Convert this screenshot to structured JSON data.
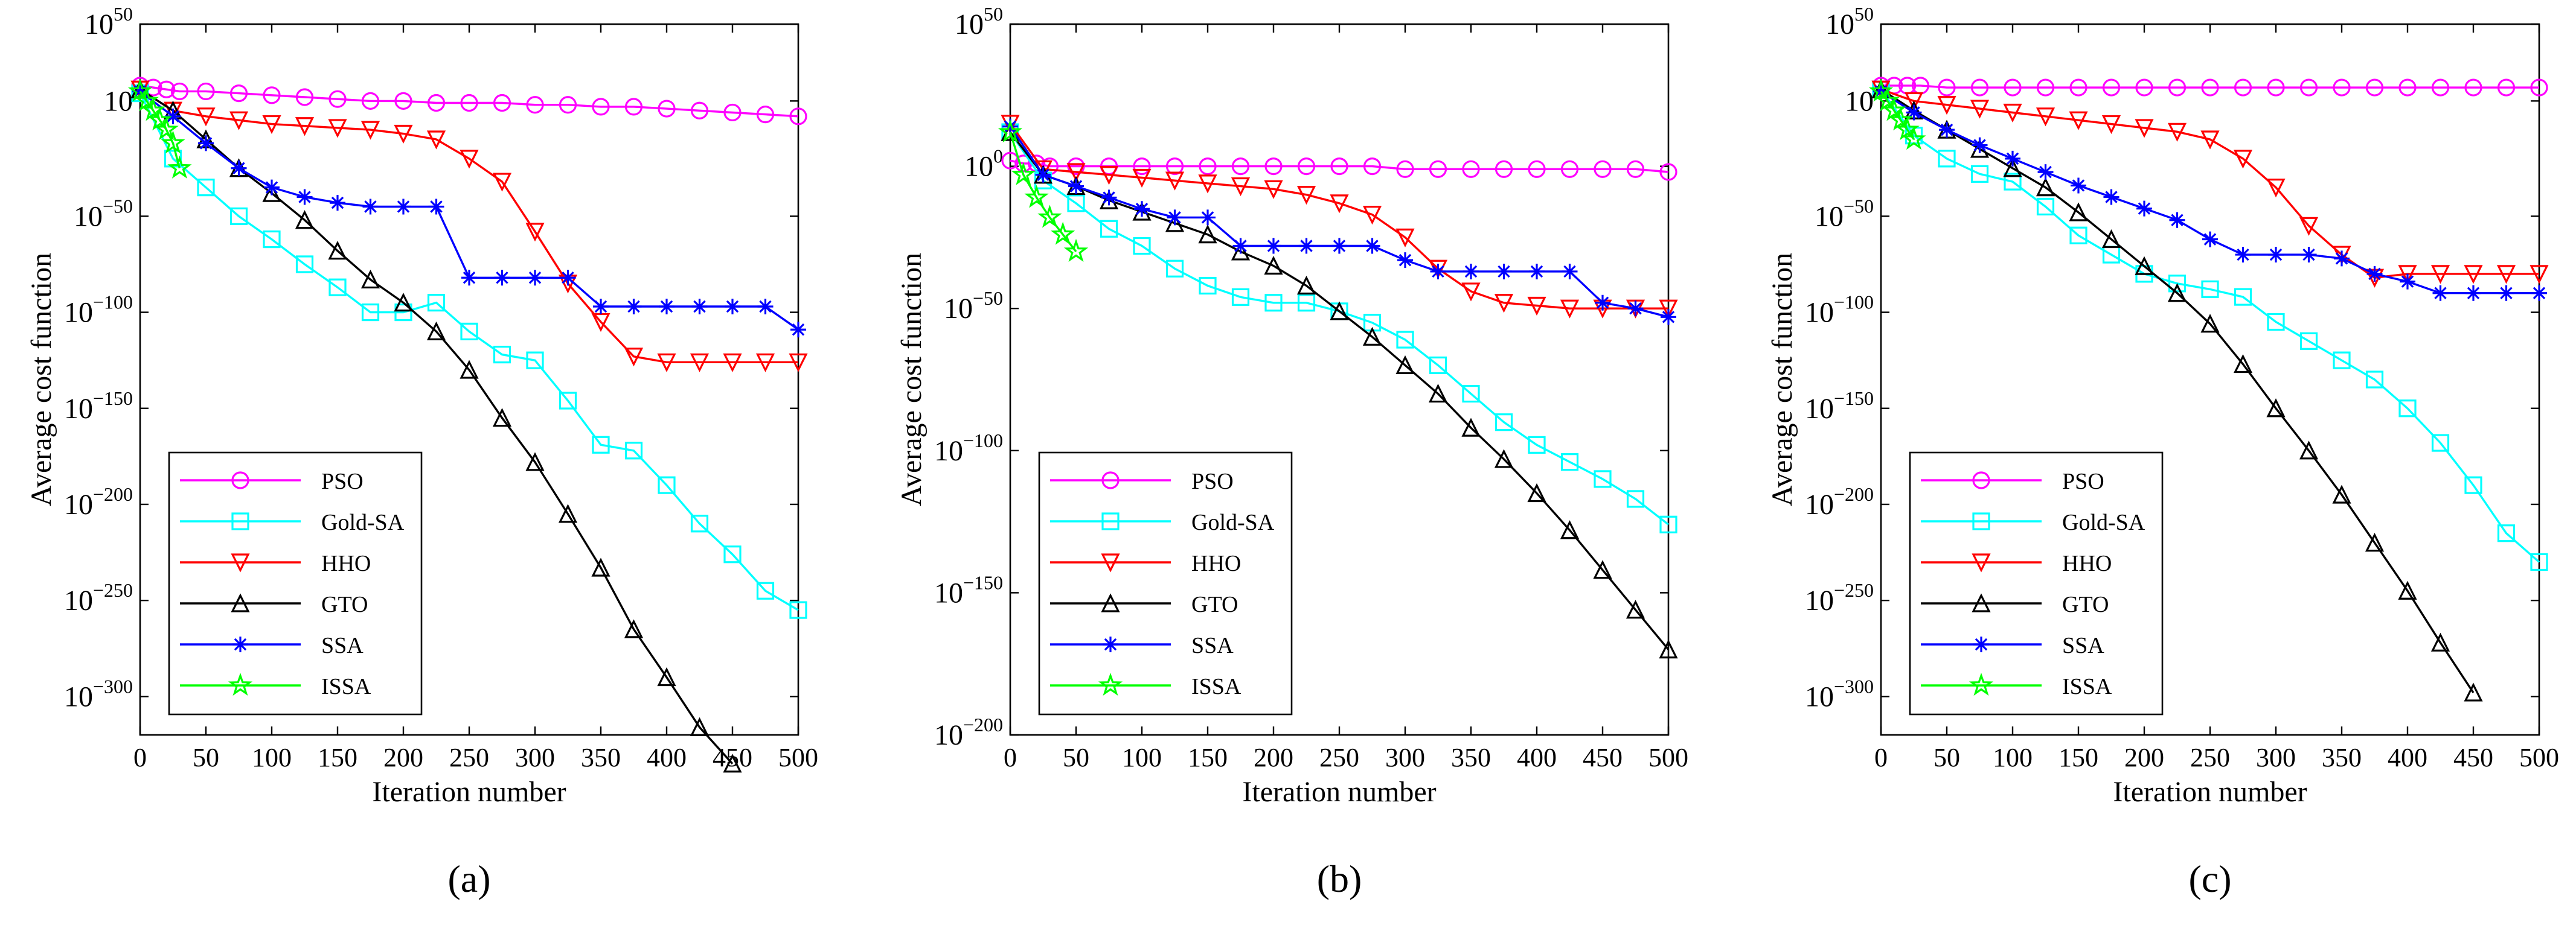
{
  "figure": {
    "panel_labels": [
      "(a)",
      "(b)",
      "(c)"
    ],
    "legend": [
      {
        "name": "PSO",
        "color": "#ff00ff",
        "marker": "circle"
      },
      {
        "name": "Gold-SA",
        "color": "#00ffff",
        "marker": "square"
      },
      {
        "name": "HHO",
        "color": "#ff0000",
        "marker": "triangle-down"
      },
      {
        "name": "GTO",
        "color": "#000000",
        "marker": "triangle-up"
      },
      {
        "name": "SSA",
        "color": "#0000ff",
        "marker": "asterisk"
      },
      {
        "name": "ISSA",
        "color": "#00ff00",
        "marker": "star"
      }
    ]
  },
  "chart_data": [
    {
      "type": "line",
      "panel": "(a)",
      "xlabel": "Iteration number",
      "ylabel": "Average cost function",
      "y_scale": "log10",
      "xlim": [
        0,
        500
      ],
      "ylim": [
        -320,
        50
      ],
      "x_ticks": [
        0,
        50,
        100,
        150,
        200,
        250,
        300,
        350,
        400,
        450,
        500
      ],
      "y_ticks": [
        {
          "exp": 50,
          "label_base": "10",
          "label_exp": "50"
        },
        {
          "exp": 10,
          "label_base": "10",
          "label_exp": ""
        },
        {
          "exp": -50,
          "label_base": "10",
          "label_exp": "−50"
        },
        {
          "exp": -100,
          "label_base": "10",
          "label_exp": "−100"
        },
        {
          "exp": -150,
          "label_base": "10",
          "label_exp": "−150"
        },
        {
          "exp": -200,
          "label_base": "10",
          "label_exp": "−200"
        },
        {
          "exp": -250,
          "label_base": "10",
          "label_exp": "−250"
        },
        {
          "exp": -300,
          "label_base": "10",
          "label_exp": "−300"
        }
      ],
      "series": [
        {
          "name": "PSO",
          "x": [
            0,
            10,
            20,
            30,
            50,
            75,
            100,
            125,
            150,
            175,
            200,
            225,
            250,
            275,
            300,
            325,
            350,
            375,
            400,
            425,
            450,
            475,
            500
          ],
          "log10_y": [
            18,
            17,
            16,
            15,
            15,
            14,
            13,
            12,
            11,
            10,
            10,
            9,
            9,
            9,
            8,
            8,
            7,
            7,
            6,
            5,
            4,
            3,
            2
          ]
        },
        {
          "name": "Gold-SA",
          "x": [
            0,
            25,
            50,
            75,
            100,
            125,
            150,
            175,
            200,
            225,
            250,
            275,
            300,
            325,
            350,
            375,
            400,
            425,
            450,
            475,
            500
          ],
          "log10_y": [
            14,
            -20,
            -35,
            -50,
            -62,
            -75,
            -87,
            -100,
            -100,
            -95,
            -110,
            -122,
            -125,
            -146,
            -169,
            -172,
            -190,
            -210,
            -226,
            -245,
            -255
          ]
        },
        {
          "name": "HHO",
          "x": [
            0,
            25,
            50,
            75,
            100,
            125,
            150,
            175,
            200,
            225,
            250,
            275,
            300,
            325,
            350,
            375,
            400,
            425,
            450,
            475,
            500
          ],
          "log10_y": [
            16,
            5,
            2,
            0,
            -2,
            -3,
            -4,
            -5,
            -7,
            -10,
            -20,
            -32,
            -58,
            -85,
            -105,
            -123,
            -126,
            -126,
            -126,
            -126,
            -126
          ]
        },
        {
          "name": "GTO",
          "x": [
            0,
            25,
            50,
            75,
            100,
            125,
            150,
            175,
            200,
            225,
            250,
            275,
            300,
            325,
            350,
            375,
            400,
            425,
            450
          ],
          "log10_y": [
            16,
            5,
            -10,
            -25,
            -38,
            -52,
            -68,
            -83,
            -95,
            -110,
            -130,
            -155,
            -178,
            -205,
            -233,
            -265,
            -290,
            -316,
            -335
          ]
        },
        {
          "name": "SSA",
          "x": [
            0,
            25,
            50,
            75,
            100,
            125,
            150,
            175,
            200,
            225,
            250,
            275,
            300,
            325,
            350,
            375,
            400,
            425,
            450,
            475,
            500
          ],
          "log10_y": [
            15,
            2,
            -12,
            -25,
            -35,
            -40,
            -43,
            -45,
            -45,
            -45,
            -82,
            -82,
            -82,
            -82,
            -97,
            -97,
            -97,
            -97,
            -97,
            -97,
            -109
          ]
        },
        {
          "name": "ISSA",
          "x": [
            0,
            5,
            10,
            15,
            20,
            25,
            30
          ],
          "log10_y": [
            15,
            10,
            5,
            0,
            -5,
            -12,
            -25
          ]
        }
      ]
    },
    {
      "type": "line",
      "panel": "(b)",
      "xlabel": "Iteration number",
      "ylabel": "Average cost function",
      "y_scale": "log10",
      "xlim": [
        0,
        500
      ],
      "ylim": [
        -200,
        50
      ],
      "x_ticks": [
        0,
        50,
        100,
        150,
        200,
        250,
        300,
        350,
        400,
        450,
        500
      ],
      "y_ticks": [
        {
          "exp": 50,
          "label_base": "10",
          "label_exp": "50"
        },
        {
          "exp": 0,
          "label_base": "10",
          "label_exp": "0"
        },
        {
          "exp": -50,
          "label_base": "10",
          "label_exp": "−50"
        },
        {
          "exp": -100,
          "label_base": "10",
          "label_exp": "−100"
        },
        {
          "exp": -150,
          "label_base": "10",
          "label_exp": "−150"
        },
        {
          "exp": -200,
          "label_base": "10",
          "label_exp": "−200"
        }
      ],
      "series": [
        {
          "name": "PSO",
          "x": [
            0,
            10,
            20,
            30,
            50,
            75,
            100,
            125,
            150,
            175,
            200,
            225,
            250,
            275,
            300,
            325,
            350,
            375,
            400,
            425,
            450,
            475,
            500
          ],
          "log10_y": [
            2,
            1,
            1,
            0,
            0,
            0,
            0,
            0,
            0,
            0,
            0,
            0,
            0,
            0,
            -1,
            -1,
            -1,
            -1,
            -1,
            -1,
            -1,
            -1,
            -2
          ]
        },
        {
          "name": "Gold-SA",
          "x": [
            0,
            25,
            50,
            75,
            100,
            125,
            150,
            175,
            200,
            225,
            250,
            275,
            300,
            325,
            350,
            375,
            400,
            425,
            450,
            475,
            500
          ],
          "log10_y": [
            12,
            -5,
            -13,
            -22,
            -28,
            -36,
            -42,
            -46,
            -48,
            -48,
            -51,
            -55,
            -61,
            -70,
            -80,
            -90,
            -98,
            -104,
            -110,
            -117,
            -126
          ]
        },
        {
          "name": "HHO",
          "x": [
            0,
            25,
            50,
            75,
            100,
            125,
            150,
            175,
            200,
            225,
            250,
            275,
            300,
            325,
            350,
            375,
            400,
            425,
            450,
            475,
            500
          ],
          "log10_y": [
            15,
            -1,
            -2,
            -3,
            -4,
            -5,
            -6,
            -7,
            -8,
            -10,
            -13,
            -17,
            -25,
            -36,
            -44,
            -48,
            -49,
            -50,
            -50,
            -50,
            -50
          ]
        },
        {
          "name": "SSA",
          "x": [
            0,
            25,
            50,
            75,
            100,
            125,
            150,
            175,
            200,
            225,
            250,
            275,
            300,
            325,
            350,
            375,
            400,
            425,
            450,
            475,
            500
          ],
          "log10_y": [
            14,
            -3,
            -7,
            -11,
            -15,
            -18,
            -18,
            -28,
            -28,
            -28,
            -28,
            -28,
            -33,
            -37,
            -37,
            -37,
            -37,
            -37,
            -48,
            -50,
            -53
          ]
        },
        {
          "name": "GTO",
          "x": [
            0,
            25,
            50,
            75,
            100,
            125,
            150,
            175,
            200,
            225,
            250,
            275,
            300,
            325,
            350,
            375,
            400,
            425,
            450,
            475,
            500
          ],
          "log10_y": [
            12,
            -3,
            -7,
            -12,
            -16,
            -20,
            -24,
            -30,
            -35,
            -42,
            -51,
            -60,
            -70,
            -80,
            -92,
            -103,
            -115,
            -128,
            -142,
            -156,
            -170
          ]
        },
        {
          "name": "ISSA",
          "x": [
            0,
            10,
            20,
            30,
            40,
            50
          ],
          "log10_y": [
            12,
            -3,
            -11,
            -18,
            -24,
            -30
          ]
        }
      ]
    },
    {
      "type": "line",
      "panel": "(c)",
      "xlabel": "Iteration number",
      "ylabel": "Average cost function",
      "y_scale": "log10",
      "xlim": [
        0,
        500
      ],
      "ylim": [
        -320,
        50
      ],
      "x_ticks": [
        0,
        50,
        100,
        150,
        200,
        250,
        300,
        350,
        400,
        450,
        500
      ],
      "y_ticks": [
        {
          "exp": 50,
          "label_base": "10",
          "label_exp": "50"
        },
        {
          "exp": 10,
          "label_base": "10",
          "label_exp": ""
        },
        {
          "exp": -50,
          "label_base": "10",
          "label_exp": "−50"
        },
        {
          "exp": -100,
          "label_base": "10",
          "label_exp": "−100"
        },
        {
          "exp": -150,
          "label_base": "10",
          "label_exp": "−150"
        },
        {
          "exp": -200,
          "label_base": "10",
          "label_exp": "−200"
        },
        {
          "exp": -250,
          "label_base": "10",
          "label_exp": "−250"
        },
        {
          "exp": -300,
          "label_base": "10",
          "label_exp": "−300"
        }
      ],
      "series": [
        {
          "name": "PSO",
          "x": [
            0,
            10,
            20,
            30,
            50,
            75,
            100,
            125,
            150,
            175,
            200,
            225,
            250,
            275,
            300,
            325,
            350,
            375,
            400,
            425,
            450,
            475,
            500
          ],
          "log10_y": [
            18,
            18,
            18,
            18,
            17,
            17,
            17,
            17,
            17,
            17,
            17,
            17,
            17,
            17,
            17,
            17,
            17,
            17,
            17,
            17,
            17,
            17,
            17
          ]
        },
        {
          "name": "Gold-SA",
          "x": [
            0,
            25,
            50,
            75,
            100,
            125,
            150,
            175,
            200,
            225,
            250,
            275,
            300,
            325,
            350,
            375,
            400,
            425,
            450,
            475,
            500
          ],
          "log10_y": [
            16,
            -8,
            -20,
            -28,
            -32,
            -45,
            -60,
            -70,
            -80,
            -85,
            -88,
            -92,
            -105,
            -115,
            -125,
            -135,
            -150,
            -168,
            -190,
            -215,
            -230
          ]
        },
        {
          "name": "HHO",
          "x": [
            0,
            25,
            50,
            75,
            100,
            125,
            150,
            175,
            200,
            225,
            250,
            275,
            300,
            325,
            350,
            375,
            400,
            425,
            450,
            475,
            500
          ],
          "log10_y": [
            16,
            10,
            8,
            6,
            4,
            2,
            0,
            -2,
            -4,
            -6,
            -10,
            -20,
            -35,
            -55,
            -70,
            -82,
            -80,
            -80,
            -80,
            -80,
            -80
          ]
        },
        {
          "name": "SSA",
          "x": [
            0,
            25,
            50,
            75,
            100,
            125,
            150,
            175,
            200,
            225,
            250,
            275,
            300,
            325,
            350,
            375,
            400,
            425,
            450,
            475,
            500
          ],
          "log10_y": [
            15,
            4,
            -5,
            -13,
            -20,
            -27,
            -34,
            -40,
            -46,
            -52,
            -62,
            -70,
            -70,
            -70,
            -72,
            -80,
            -84,
            -90,
            -90,
            -90,
            -90
          ]
        },
        {
          "name": "GTO",
          "x": [
            0,
            25,
            50,
            75,
            100,
            125,
            150,
            175,
            200,
            225,
            250,
            275,
            300,
            325,
            350,
            375,
            400,
            425,
            450
          ],
          "log10_y": [
            16,
            5,
            -5,
            -15,
            -25,
            -35,
            -48,
            -62,
            -76,
            -90,
            -106,
            -127,
            -150,
            -172,
            -195,
            -220,
            -245,
            -272,
            -298
          ]
        },
        {
          "name": "ISSA",
          "x": [
            0,
            5,
            10,
            15,
            20,
            25
          ],
          "log10_y": [
            15,
            10,
            5,
            0,
            -5,
            -10
          ]
        }
      ]
    }
  ]
}
